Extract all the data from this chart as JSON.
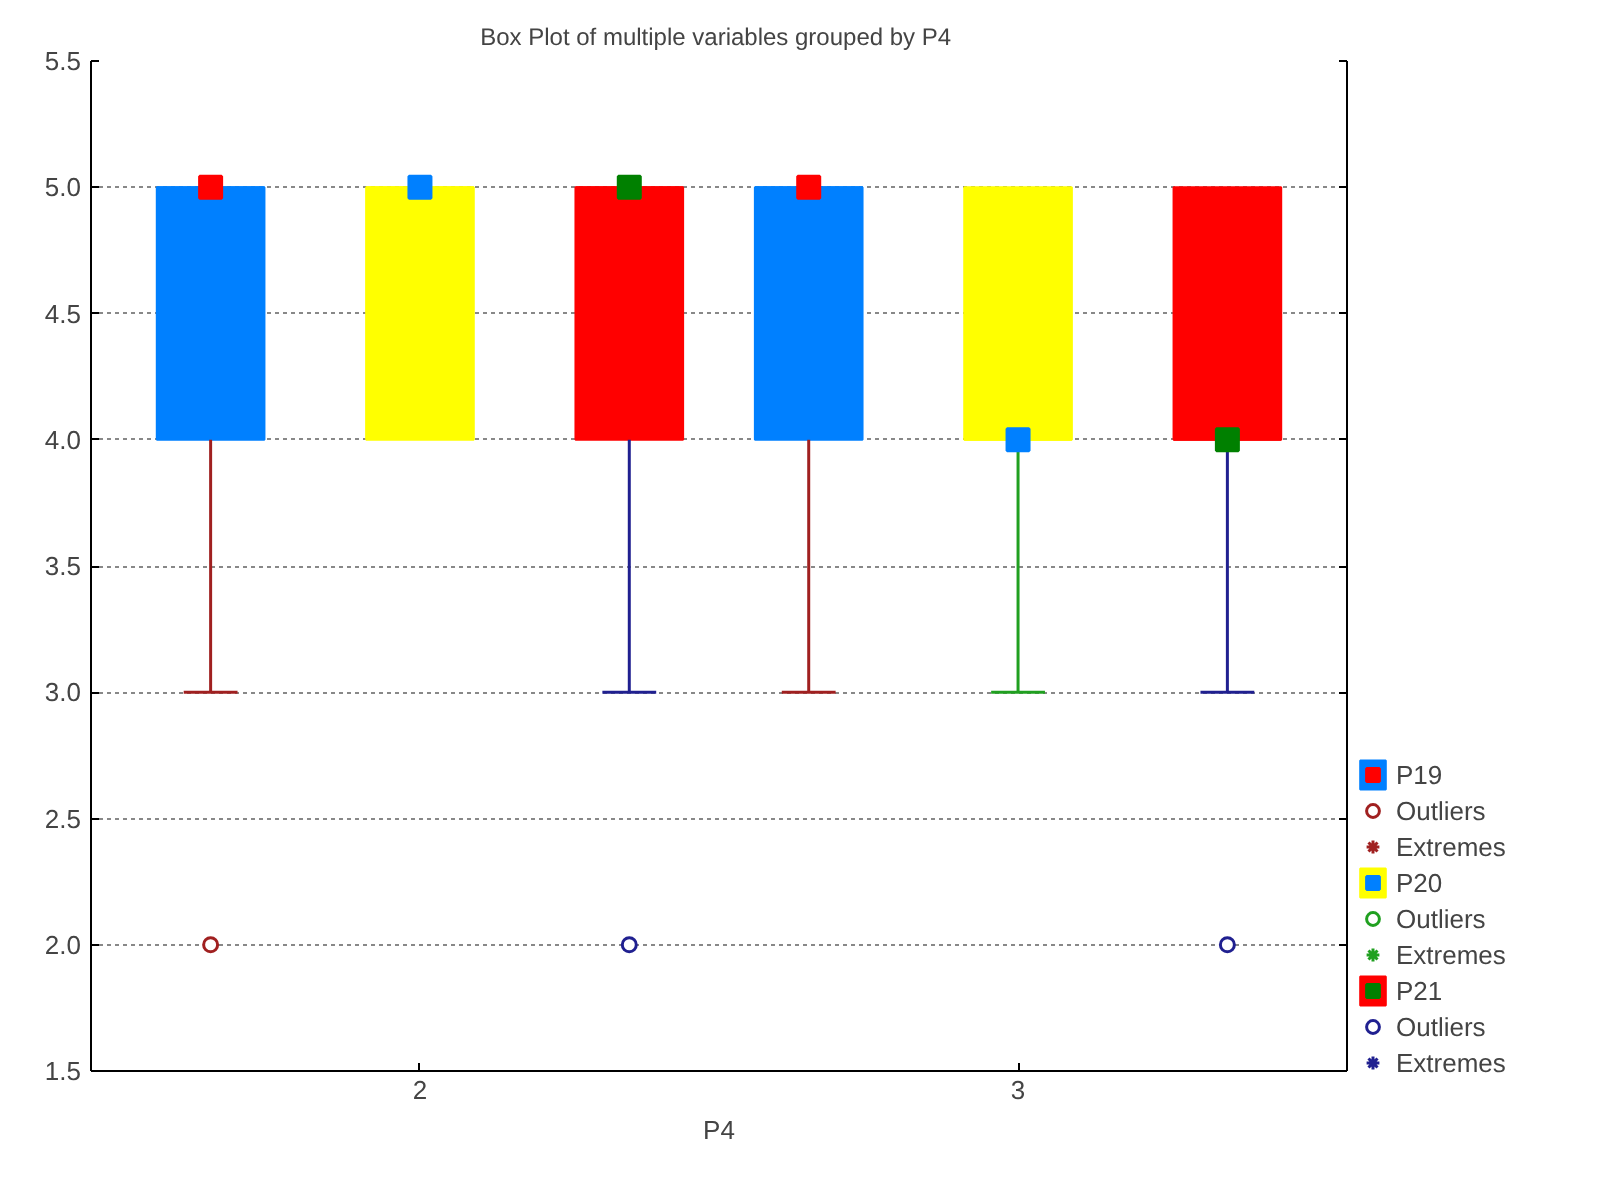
{
  "chart_data": {
    "type": "box",
    "title": "Box Plot of multiple variables grouped by  P4",
    "xlabel": "P4",
    "categories": [
      "2",
      "3"
    ],
    "ylim": [
      1.5,
      5.5
    ],
    "yticks": [
      {
        "value": 1.5,
        "label": "1.5"
      },
      {
        "value": 2,
        "label": "2.0"
      },
      {
        "value": 2.5,
        "label": "2.5"
      },
      {
        "value": 3,
        "label": "3.0"
      },
      {
        "value": 3.5,
        "label": "3.5"
      },
      {
        "value": 4,
        "label": "4.0"
      },
      {
        "value": 4.5,
        "label": "4.5"
      },
      {
        "value": 5,
        "label": "5.0"
      },
      {
        "value": 5.5,
        "label": "5.5"
      }
    ],
    "grid": "y",
    "legend": "bottom right",
    "series": [
      {
        "name": "P19",
        "color": "#0080ff",
        "boxes": [
          {
            "low": 3,
            "q1": 4,
            "median": 5,
            "q3": 5,
            "high": 5
          },
          {
            "low": 3,
            "q1": 4,
            "median": 5,
            "q3": 5,
            "high": 5
          }
        ]
      },
      {
        "type": "scatter",
        "marker": "square",
        "color": "#ff0000",
        "values": [
          5,
          5
        ]
      },
      {
        "name": "Outliers",
        "type": "scatter",
        "marker": "circle",
        "color": "#a02020",
        "x": [
          "2"
        ],
        "values": [
          2
        ]
      },
      {
        "name": "Extremes",
        "type": "scatter",
        "marker": "star",
        "color": "#a02020",
        "values": [
          null,
          null
        ]
      },
      {
        "name": "P20",
        "color": "#ffff00",
        "boxes": [
          {
            "low": 4,
            "q1": 4,
            "median": 5,
            "q3": 5,
            "high": 5
          },
          {
            "low": 3,
            "q1": 4,
            "median": 4,
            "q3": 5,
            "high": 5
          }
        ]
      },
      {
        "type": "scatter",
        "marker": "square",
        "color": "#0080ff",
        "values": [
          5,
          4
        ]
      },
      {
        "name": "Outliers",
        "type": "scatter",
        "marker": "circle",
        "color": "#20a020",
        "values": [
          null,
          null
        ]
      },
      {
        "name": "Extremes",
        "type": "scatter",
        "marker": "star",
        "color": "#20a020",
        "values": [
          null,
          null
        ]
      },
      {
        "name": "P21",
        "color": "#ff0000",
        "boxes": [
          {
            "low": 3,
            "q1": 4,
            "median": 5,
            "q3": 5,
            "high": 5
          },
          {
            "low": 3,
            "q1": 4,
            "median": 4,
            "q3": 5,
            "high": 5
          }
        ]
      },
      {
        "type": "scatter",
        "marker": "square",
        "color": "#008000",
        "values": [
          5,
          4
        ]
      },
      {
        "name": "Outliers",
        "type": "scatter",
        "marker": "circle",
        "color": "#202090",
        "x": [
          "2",
          "3"
        ],
        "values": [
          2,
          2
        ]
      },
      {
        "name": "Extremes",
        "type": "scatter",
        "marker": "star",
        "color": "#202090",
        "values": [
          null,
          null
        ]
      }
    ]
  }
}
